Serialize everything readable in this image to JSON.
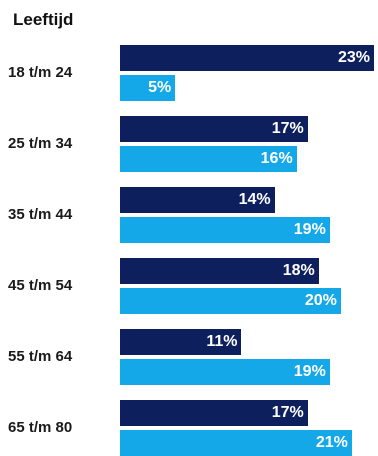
{
  "chart_data": {
    "type": "bar",
    "orientation": "horizontal",
    "title": "Leeftijd",
    "xlabel": "",
    "ylabel": "",
    "categories": [
      "18 t/m 24",
      "25 t/m 34",
      "35 t/m 44",
      "45 t/m 54",
      "55 t/m 64",
      "65 t/m 80"
    ],
    "series": [
      {
        "values": [
          23,
          17,
          14,
          18,
          11,
          17
        ],
        "color": "#0d1f5c"
      },
      {
        "values": [
          5,
          16,
          19,
          20,
          19,
          21
        ],
        "color": "#15a8e8"
      }
    ],
    "value_suffix": "%",
    "xlim": [
      0,
      23
    ],
    "grid": false,
    "legend": "none"
  }
}
